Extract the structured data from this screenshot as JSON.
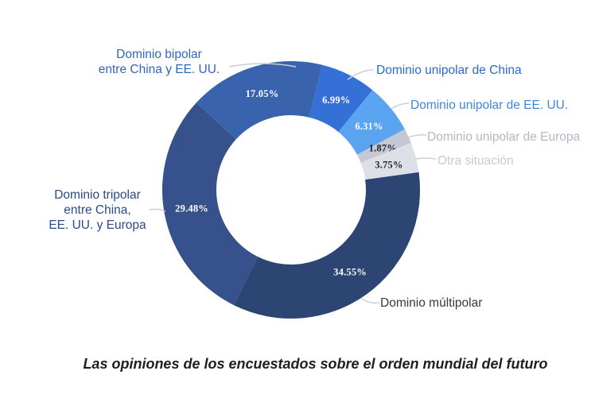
{
  "page": {
    "background": "#ffffff"
  },
  "chart_data": {
    "type": "pie",
    "donut": true,
    "unit": "percent",
    "title": "Las opiniones de los encuestados sobre el orden mundial del futuro",
    "title_color": "#1f1f1f",
    "legend": "none (outside labels with leader lines)",
    "start_angle_clockwise_from_top_deg": 14,
    "leader_line_color": "#c8cdd6",
    "slices": [
      {
        "label": "Dominio unipolar de China",
        "value": 6.99,
        "pct_label": "6.99%",
        "color": "#3470d6",
        "pct_color": "#ffffff",
        "label_color": "#2d68cf"
      },
      {
        "label": "Dominio unipolar de EE. UU.",
        "value": 6.31,
        "pct_label": "6.31%",
        "color": "#5ba4f2",
        "pct_color": "#ffffff",
        "label_color": "#4186db"
      },
      {
        "label": "Dominio unipolar de Europa",
        "value": 1.87,
        "pct_label": "1.87%",
        "color": "#c3c8d2",
        "pct_color": "#1d2330",
        "label_color": "#b2b7c1"
      },
      {
        "label": "Otra situación",
        "value": 3.75,
        "pct_label": "3.75%",
        "color": "#dde0e6",
        "pct_color": "#1d2330",
        "label_color": "#c6cad3"
      },
      {
        "label": "Dominio múltipolar",
        "value": 34.55,
        "pct_label": "34.55%",
        "color": "#2c4573",
        "pct_color": "#ffffff",
        "label_color": "#35393f"
      },
      {
        "label": "Dominio tripolar entre China, EE. UU. y Europa",
        "value": 29.48,
        "pct_label": "29.48%",
        "color": "#36518b",
        "pct_color": "#ffffff",
        "label_color": "#2c4b82",
        "callout_lines": [
          "Dominio tripolar",
          "entre China,",
          "EE. UU. y Europa"
        ]
      },
      {
        "label": "Dominio bipolar entre China y EE. UU.",
        "value": 17.05,
        "pct_label": "17.05%",
        "color": "#3a63ae",
        "pct_color": "#ffffff",
        "label_color": "#3165bd",
        "callout_lines": [
          "Dominio bipolar",
          "entre China y EE. UU."
        ]
      }
    ]
  }
}
